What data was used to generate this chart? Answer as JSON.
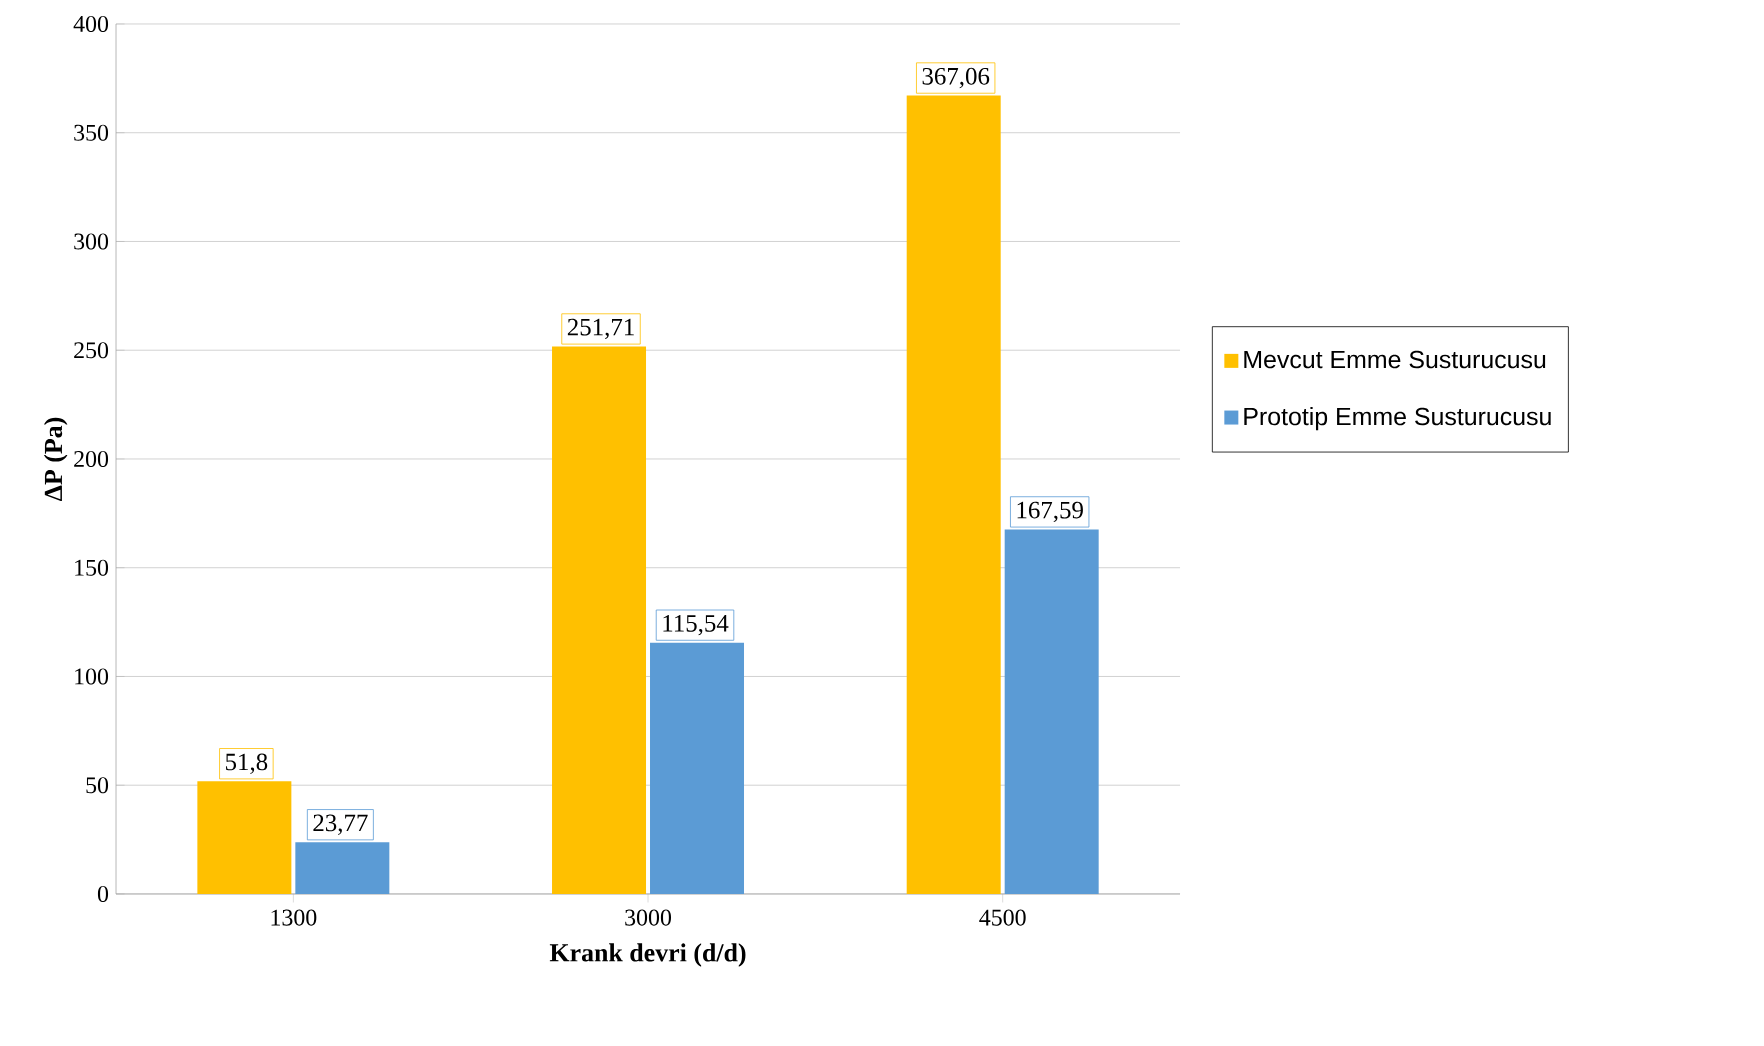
{
  "chart_data": {
    "type": "bar",
    "xlabel": "Krank devri (d/d)",
    "ylabel": "ΔP (Pa)",
    "categories": [
      "1300",
      "3000",
      "4500"
    ],
    "series": [
      {
        "name": "Mevcut Emme Susturucusu",
        "color": "#ffc000",
        "values": [
          51.8,
          251.71,
          367.06
        ],
        "value_labels": [
          "51,8",
          "251,71",
          "367,06"
        ]
      },
      {
        "name": "Prototip Emme Susturucusu",
        "color": "#5b9bd5",
        "values": [
          23.77,
          115.54,
          167.59
        ],
        "value_labels": [
          "23,77",
          "115,54",
          "167,59"
        ]
      }
    ],
    "ylim": [
      0,
      400
    ],
    "yticks": [
      0,
      50,
      100,
      150,
      200,
      250,
      300,
      350,
      400
    ],
    "grid": "y",
    "legend": "right"
  }
}
